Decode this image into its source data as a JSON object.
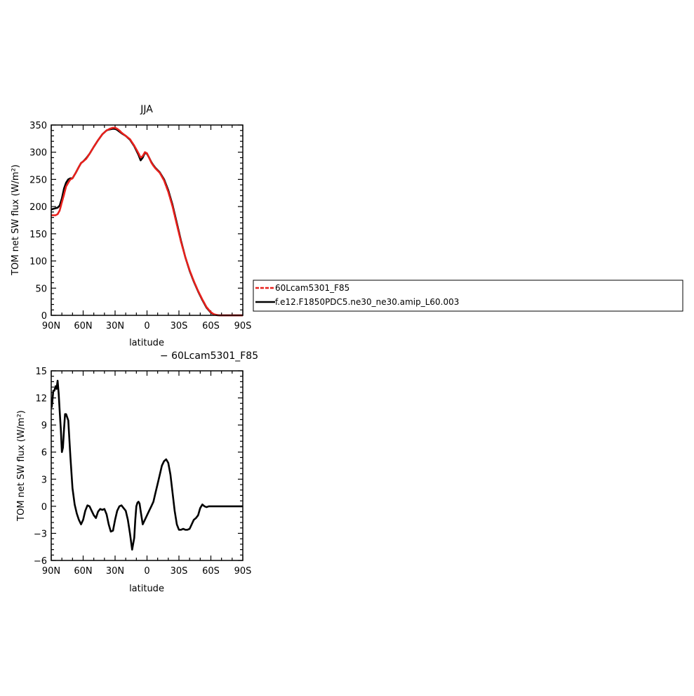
{
  "chart_data": [
    {
      "type": "line",
      "title": "JJA",
      "xlabel": "latitude",
      "ylabel": "TOM net SW flux (W/m²)",
      "xticks": [
        {
          "value": 90,
          "label": "90N"
        },
        {
          "value": 60,
          "label": "60N"
        },
        {
          "value": 30,
          "label": "30N"
        },
        {
          "value": 0,
          "label": "0"
        },
        {
          "value": -30,
          "label": "30S"
        },
        {
          "value": -60,
          "label": "60S"
        },
        {
          "value": -90,
          "label": "90S"
        }
      ],
      "xlim": [
        90,
        -90
      ],
      "ylim": [
        0,
        350
      ],
      "yticks": [
        0,
        50,
        100,
        150,
        200,
        250,
        300,
        350
      ],
      "legend": {
        "placement": "right",
        "entries": [
          "60Lcam5301_F85",
          "f.e12.F1850PDC5.ne30_ne30.amip_L60.003"
        ]
      },
      "series": [
        {
          "name": "60Lcam5301_F85",
          "color": "#e8201c",
          "dashed": true,
          "x": [
            89.5,
            86,
            84,
            82,
            80,
            78,
            76,
            74,
            72,
            70,
            67,
            64,
            62,
            60,
            57,
            54,
            50,
            46,
            42,
            38,
            35,
            32,
            30,
            28,
            26,
            24,
            20,
            16,
            12,
            8,
            6,
            4,
            2,
            0,
            -2,
            -4,
            -6,
            -8,
            -12,
            -16,
            -20,
            -24,
            -28,
            -32,
            -36,
            -40,
            -44,
            -48,
            -52,
            -56,
            -60,
            -63,
            -66,
            -68,
            -70,
            -72,
            -75,
            -80,
            -85,
            -89.5
          ],
          "y": [
            184,
            184,
            186,
            193,
            208,
            222,
            237,
            244,
            250,
            252,
            262,
            273,
            280,
            283,
            288,
            297,
            310,
            322,
            333,
            340,
            343,
            345,
            345,
            343,
            340,
            336,
            330,
            324,
            312,
            298,
            290,
            293,
            300,
            298,
            290,
            281,
            275,
            270,
            262,
            248,
            227,
            200,
            167,
            135,
            107,
            83,
            63,
            45,
            29,
            15,
            6,
            2,
            0.5,
            0,
            0,
            0,
            0,
            0,
            0,
            0
          ]
        },
        {
          "name": "f.e12.F1850PDC5.ne30_ne30.amip_L60.003",
          "color": "#000000",
          "dashed": false,
          "x": [
            89.5,
            86,
            84,
            82,
            80,
            78,
            76,
            74,
            72,
            70,
            67,
            64,
            62,
            60,
            57,
            54,
            50,
            46,
            42,
            38,
            35,
            32,
            30,
            28,
            26,
            24,
            20,
            16,
            12,
            8,
            6,
            4,
            2,
            0,
            -2,
            -4,
            -6,
            -8,
            -12,
            -16,
            -20,
            -24,
            -28,
            -32,
            -36,
            -40,
            -44,
            -48,
            -52,
            -56,
            -60,
            -63,
            -66,
            -68,
            -70,
            -72,
            -75,
            -80,
            -85,
            -89.5
          ],
          "y": [
            195,
            197,
            198,
            202,
            215,
            233,
            244,
            250,
            252,
            252,
            262,
            273,
            280,
            283,
            289,
            297,
            310,
            322,
            333,
            340,
            342,
            343,
            343,
            341,
            338,
            335,
            330,
            323,
            311,
            295,
            285,
            290,
            299,
            297,
            290,
            282,
            276,
            271,
            263,
            250,
            230,
            203,
            170,
            137,
            107,
            82,
            62,
            44,
            28,
            14,
            5,
            1.5,
            0.3,
            0,
            0,
            0,
            0,
            0,
            0,
            0
          ]
        }
      ]
    },
    {
      "type": "line",
      "title": "− 60Lcam5301_F85",
      "xlabel": "latitude",
      "ylabel": "TOM net SW flux (W/m²)",
      "xticks": [
        {
          "value": 90,
          "label": "90N"
        },
        {
          "value": 60,
          "label": "60N"
        },
        {
          "value": 30,
          "label": "30N"
        },
        {
          "value": 0,
          "label": "0"
        },
        {
          "value": -30,
          "label": "30S"
        },
        {
          "value": -60,
          "label": "60S"
        },
        {
          "value": -90,
          "label": "90S"
        }
      ],
      "xlim": [
        90,
        -90
      ],
      "ylim": [
        -6,
        15
      ],
      "yticks": [
        -6,
        -3,
        0,
        3,
        6,
        9,
        12,
        15
      ],
      "ytick_labels": [
        "−6",
        "−3",
        "0",
        "3",
        "6",
        "9",
        "12",
        "15"
      ],
      "series": [
        {
          "name": "",
          "color": "#000000",
          "dashed": false,
          "x": [
            89.5,
            88,
            87,
            86,
            85,
            84,
            83,
            82,
            81,
            80,
            79,
            78,
            77,
            76,
            74,
            72,
            70,
            68,
            66,
            64,
            62,
            60,
            58,
            56,
            54,
            52,
            50,
            48,
            46,
            44,
            42,
            40,
            38,
            36,
            34,
            32,
            30,
            28,
            26,
            24,
            22,
            20,
            18,
            16,
            14,
            12,
            11,
            10,
            9,
            8,
            7,
            6,
            4,
            2,
            0,
            -2,
            -4,
            -6,
            -8,
            -10,
            -12,
            -14,
            -16,
            -18,
            -20,
            -22,
            -24,
            -26,
            -28,
            -30,
            -32,
            -34,
            -36,
            -38,
            -40,
            -42,
            -44,
            -46,
            -48,
            -50,
            -52,
            -54,
            -56,
            -58,
            -60,
            -62,
            -64,
            -66,
            -70,
            -75,
            -80,
            -85,
            -89.5
          ],
          "y": [
            11,
            12.8,
            12.8,
            13.3,
            13.0,
            13.9,
            12.5,
            10.5,
            8.5,
            6.0,
            6.5,
            8.5,
            10.2,
            10.2,
            9.5,
            5.5,
            2.0,
            0.2,
            -0.8,
            -1.5,
            -2.0,
            -1.5,
            -0.5,
            0.1,
            0.0,
            -0.5,
            -1.0,
            -1.3,
            -0.6,
            -0.3,
            -0.4,
            -0.3,
            -0.9,
            -2.0,
            -2.8,
            -2.7,
            -1.5,
            -0.5,
            0.0,
            0.1,
            -0.2,
            -0.5,
            -1.5,
            -3.0,
            -4.8,
            -3.5,
            -1.5,
            0.0,
            0.4,
            0.5,
            0.3,
            -0.5,
            -2.0,
            -1.5,
            -1.0,
            -0.5,
            0.0,
            0.5,
            1.5,
            2.5,
            3.5,
            4.5,
            5.0,
            5.2,
            4.8,
            3.5,
            1.5,
            -0.5,
            -2.0,
            -2.6,
            -2.6,
            -2.5,
            -2.6,
            -2.6,
            -2.5,
            -2.0,
            -1.5,
            -1.3,
            -1.0,
            -0.2,
            0.2,
            0.0,
            -0.1,
            0.0,
            0.0,
            0.0,
            0.0,
            0.0,
            0.0,
            0.0,
            0.0,
            0.0,
            0.0
          ]
        }
      ]
    }
  ]
}
